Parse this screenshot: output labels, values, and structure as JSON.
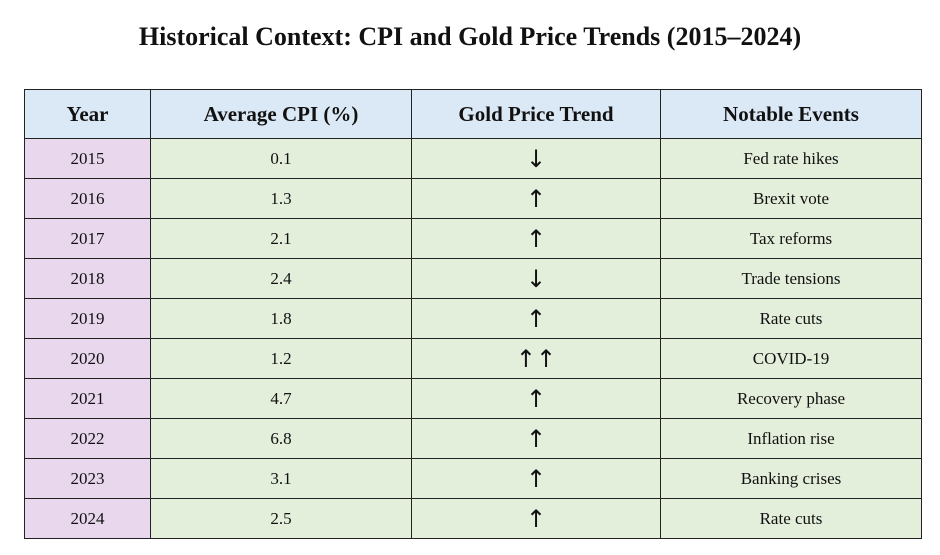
{
  "title": "Historical Context: CPI and Gold Price Trends (2015–2024)",
  "table": {
    "headers": [
      "Year",
      "Average CPI (%)",
      "Gold Price Trend",
      "Notable Events"
    ],
    "rows": [
      {
        "year": "2015",
        "cpi": "0.1",
        "trend": "↓",
        "event": "Fed rate hikes"
      },
      {
        "year": "2016",
        "cpi": "1.3",
        "trend": "↑",
        "event": "Brexit vote"
      },
      {
        "year": "2017",
        "cpi": "2.1",
        "trend": "↑",
        "event": "Tax reforms"
      },
      {
        "year": "2018",
        "cpi": "2.4",
        "trend": "↓",
        "event": "Trade tensions"
      },
      {
        "year": "2019",
        "cpi": "1.8",
        "trend": "↑",
        "event": "Rate cuts"
      },
      {
        "year": "2020",
        "cpi": "1.2",
        "trend": "↑↑",
        "event": "COVID-19"
      },
      {
        "year": "2021",
        "cpi": "4.7",
        "trend": "↑",
        "event": "Recovery phase"
      },
      {
        "year": "2022",
        "cpi": "6.8",
        "trend": "↑",
        "event": "Inflation rise"
      },
      {
        "year": "2023",
        "cpi": "3.1",
        "trend": "↑",
        "event": "Banking crises"
      },
      {
        "year": "2024",
        "cpi": "2.5",
        "trend": "↑",
        "event": "Rate cuts"
      }
    ]
  },
  "colors": {
    "header_bg": "#dbe8f5",
    "year_bg": "#e9d7ee",
    "body_bg": "#e3eedb",
    "border": "#222222"
  }
}
